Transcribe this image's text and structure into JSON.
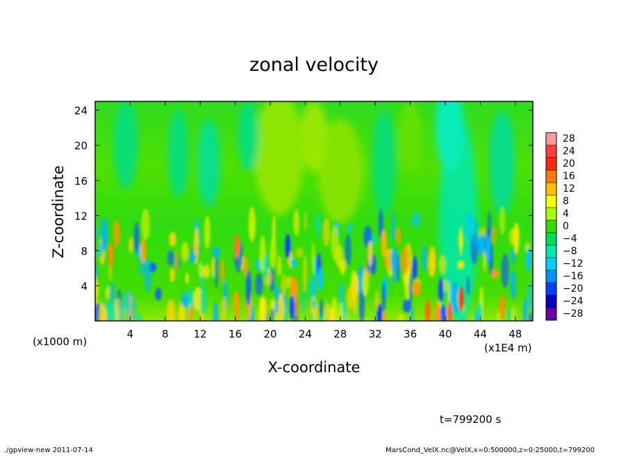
{
  "chart_data": {
    "type": "heatmap",
    "title": "zonal velocity",
    "xlabel": "X-coordinate",
    "ylabel": "Z-coordinate",
    "x_unit_left": "(x1000 m)",
    "x_unit_right": "(x1E4 m)",
    "x_ticks": [
      "4",
      "8",
      "12",
      "16",
      "20",
      "24",
      "28",
      "32",
      "36",
      "40",
      "44",
      "48"
    ],
    "y_ticks": [
      "4",
      "8",
      "12",
      "16",
      "20",
      "24"
    ],
    "xlim": [
      0,
      50
    ],
    "ylim": [
      0,
      25
    ],
    "colorbar_levels": [
      "28",
      "24",
      "20",
      "16",
      "12",
      "8",
      "4",
      "0",
      "-4",
      "-8",
      "-12",
      "-16",
      "-20",
      "-24",
      "-28"
    ],
    "colorbar_labels": [
      "28",
      "24",
      "20",
      "16",
      "12",
      "8",
      "4",
      "0",
      "−4",
      "−8",
      "−12",
      "−16",
      "−20",
      "−24",
      "−28"
    ],
    "colorbar_colors": [
      "#ff9999",
      "#ff3b3b",
      "#ff2a00",
      "#ff7a00",
      "#ffc000",
      "#ffff00",
      "#aaff00",
      "#33dd00",
      "#00dd55",
      "#00e8b0",
      "#00d0ff",
      "#0090ff",
      "#0040ff",
      "#0000c8",
      "#6a00a8"
    ],
    "time_label": "t=799200 s",
    "footer_left": "./gpview-new  2011-07-14",
    "footer_right": "MarsCond_VelX.nc@VelX,x=0:500000,z=0:25000,t=799200"
  }
}
